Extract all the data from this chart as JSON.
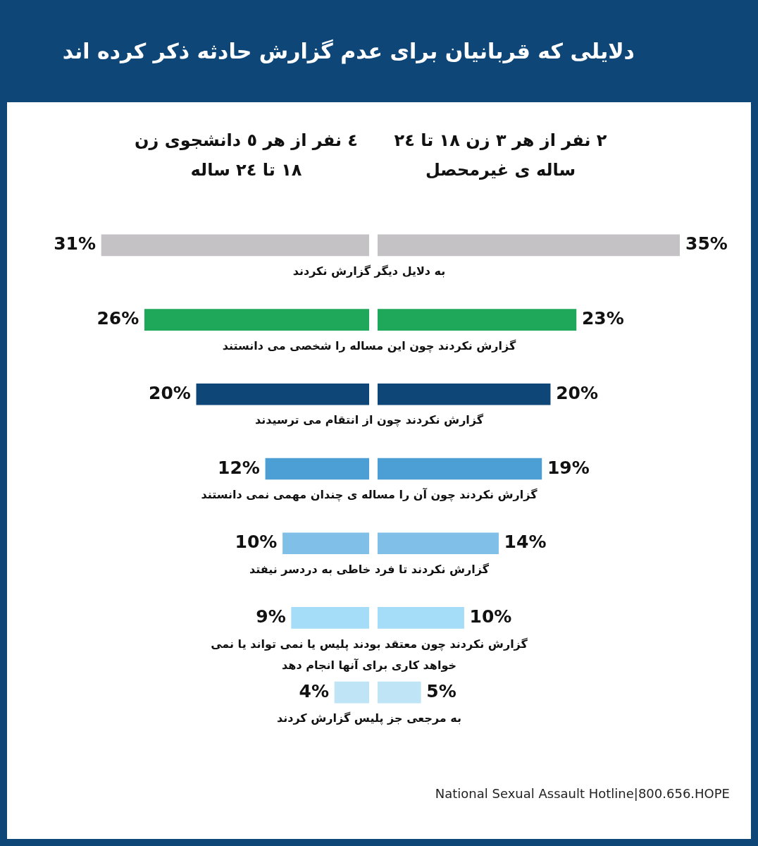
{
  "chart_data": [
    {
      "type": "bar",
      "orientation": "horizontal",
      "title": "دلایلی که قربانیان برای عدم گزارش حادثه ذکر کرده اند",
      "categories": [
        "به دلایل دیگر گزارش نکردند",
        "گزارش نکردند چون این مساله را شخصی می دانستند",
        "گزارش نکردند چون از انتقام می ترسیدند",
        "گزارش نکردند چون آن را مساله ی چندان مهمی نمی دانستند",
        "گزارش نکردند تا فرد خاطی به دردسر نیفتد",
        "گزارش نکردند چون معتقد بودند پلیس یا نمی تواند یا نمی خواهد کاری برای آنها انجام دهد",
        "به مرجعی جز پلیس گزارش کردند"
      ],
      "series": [
        {
          "name": "٤ نفر از هر ٥ دانشجوی زن ١٨ تا ٢٤ ساله",
          "colors": [
            "#c4c2c4",
            "#1fa85a",
            "#0e4677",
            "#4b9fd5",
            "#7fbfe8",
            "#a5dcf7",
            "#bee4f6"
          ],
          "values": [
            31,
            26,
            20,
            12,
            10,
            9,
            4
          ],
          "value_labels": [
            "31%",
            "26%",
            "20%",
            "12%",
            "10%",
            "9%",
            "4%"
          ]
        }
      ],
      "tick_labels": false,
      "grid": false
    },
    {
      "type": "bar",
      "orientation": "horizontal",
      "categories": [
        null,
        null,
        null,
        null,
        null,
        null,
        null
      ],
      "series": [
        {
          "name": "٢ نفر از هر ٣ زن ١٨ تا ٢٤ ساله ی غیرمحصل",
          "colors": [
            "#c4c2c4",
            "#1fa85a",
            "#0e4677",
            "#4b9fd5",
            "#7fbfe8",
            "#a5dcf7",
            "#bee4f6"
          ],
          "values": [
            35,
            23,
            20,
            19,
            14,
            10,
            5
          ],
          "value_labels": [
            "35%",
            "23%",
            "20%",
            "19%",
            "14%",
            "10%",
            "5%"
          ]
        }
      ],
      "tick_labels": false,
      "grid": false,
      "annotations": [
        "National Sexual Assault Hotline|800.656.HOPE"
      ]
    }
  ]
}
